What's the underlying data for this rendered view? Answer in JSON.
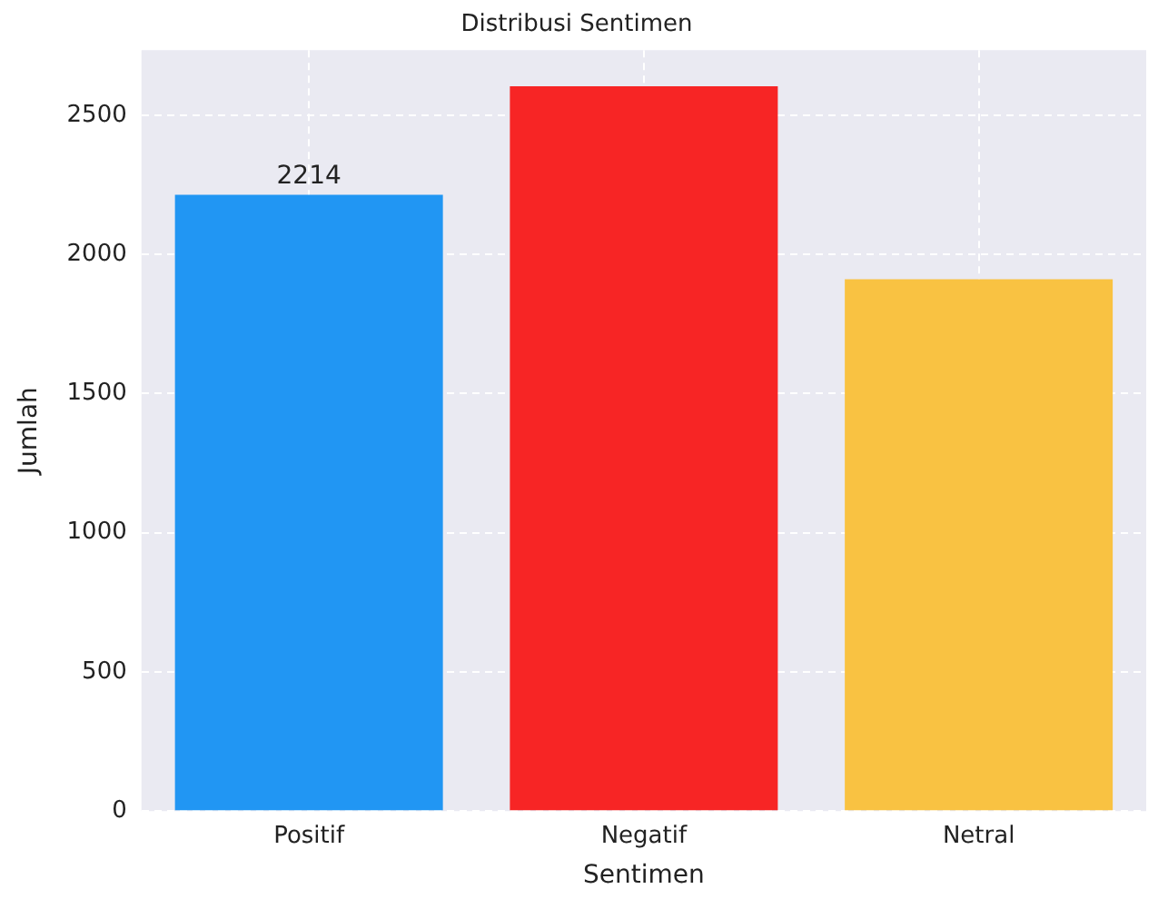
{
  "chart_data": {
    "type": "bar",
    "title": "Distribusi Sentimen",
    "xlabel": "Sentimen",
    "ylabel": "Jumlah",
    "categories": [
      "Positif",
      "Negatif",
      "Netral"
    ],
    "values": [
      2214,
      2604,
      1911
    ],
    "colors": [
      "#2196f3",
      "#f72525",
      "#f9c242"
    ],
    "value_labels": [
      "2214",
      null,
      null
    ],
    "ylim": [
      0,
      2734
    ],
    "yticks": [
      0,
      500,
      1000,
      1500,
      2000,
      2500
    ],
    "grid": true,
    "legend": false
  }
}
